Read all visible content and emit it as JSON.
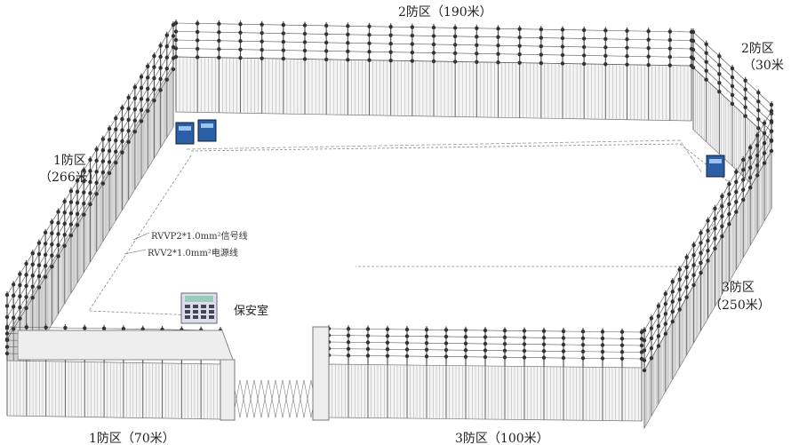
{
  "zones": [
    {
      "id": "zone-2-back",
      "label": "2防区（190米）"
    },
    {
      "id": "zone-2-corner",
      "label_line1": "2防区",
      "label_line2": "（30米"
    },
    {
      "id": "zone-1-left",
      "label_line1": "1防区",
      "label_line2": "（266米）"
    },
    {
      "id": "zone-3-right",
      "label_line1": "3防区",
      "label_line2": "（250米）"
    },
    {
      "id": "zone-1-front",
      "label": "1防区（70米）"
    },
    {
      "id": "zone-3-front",
      "label": "3防区（100米）"
    }
  ],
  "cables": {
    "signal": "RVVP2*1.0mm²信号线",
    "power": "RVV2*1.0mm²电源线"
  },
  "guard_room": "保安室",
  "colors": {
    "device": "#2a5fa8",
    "wire": "#555555",
    "insulator": "#333333"
  }
}
